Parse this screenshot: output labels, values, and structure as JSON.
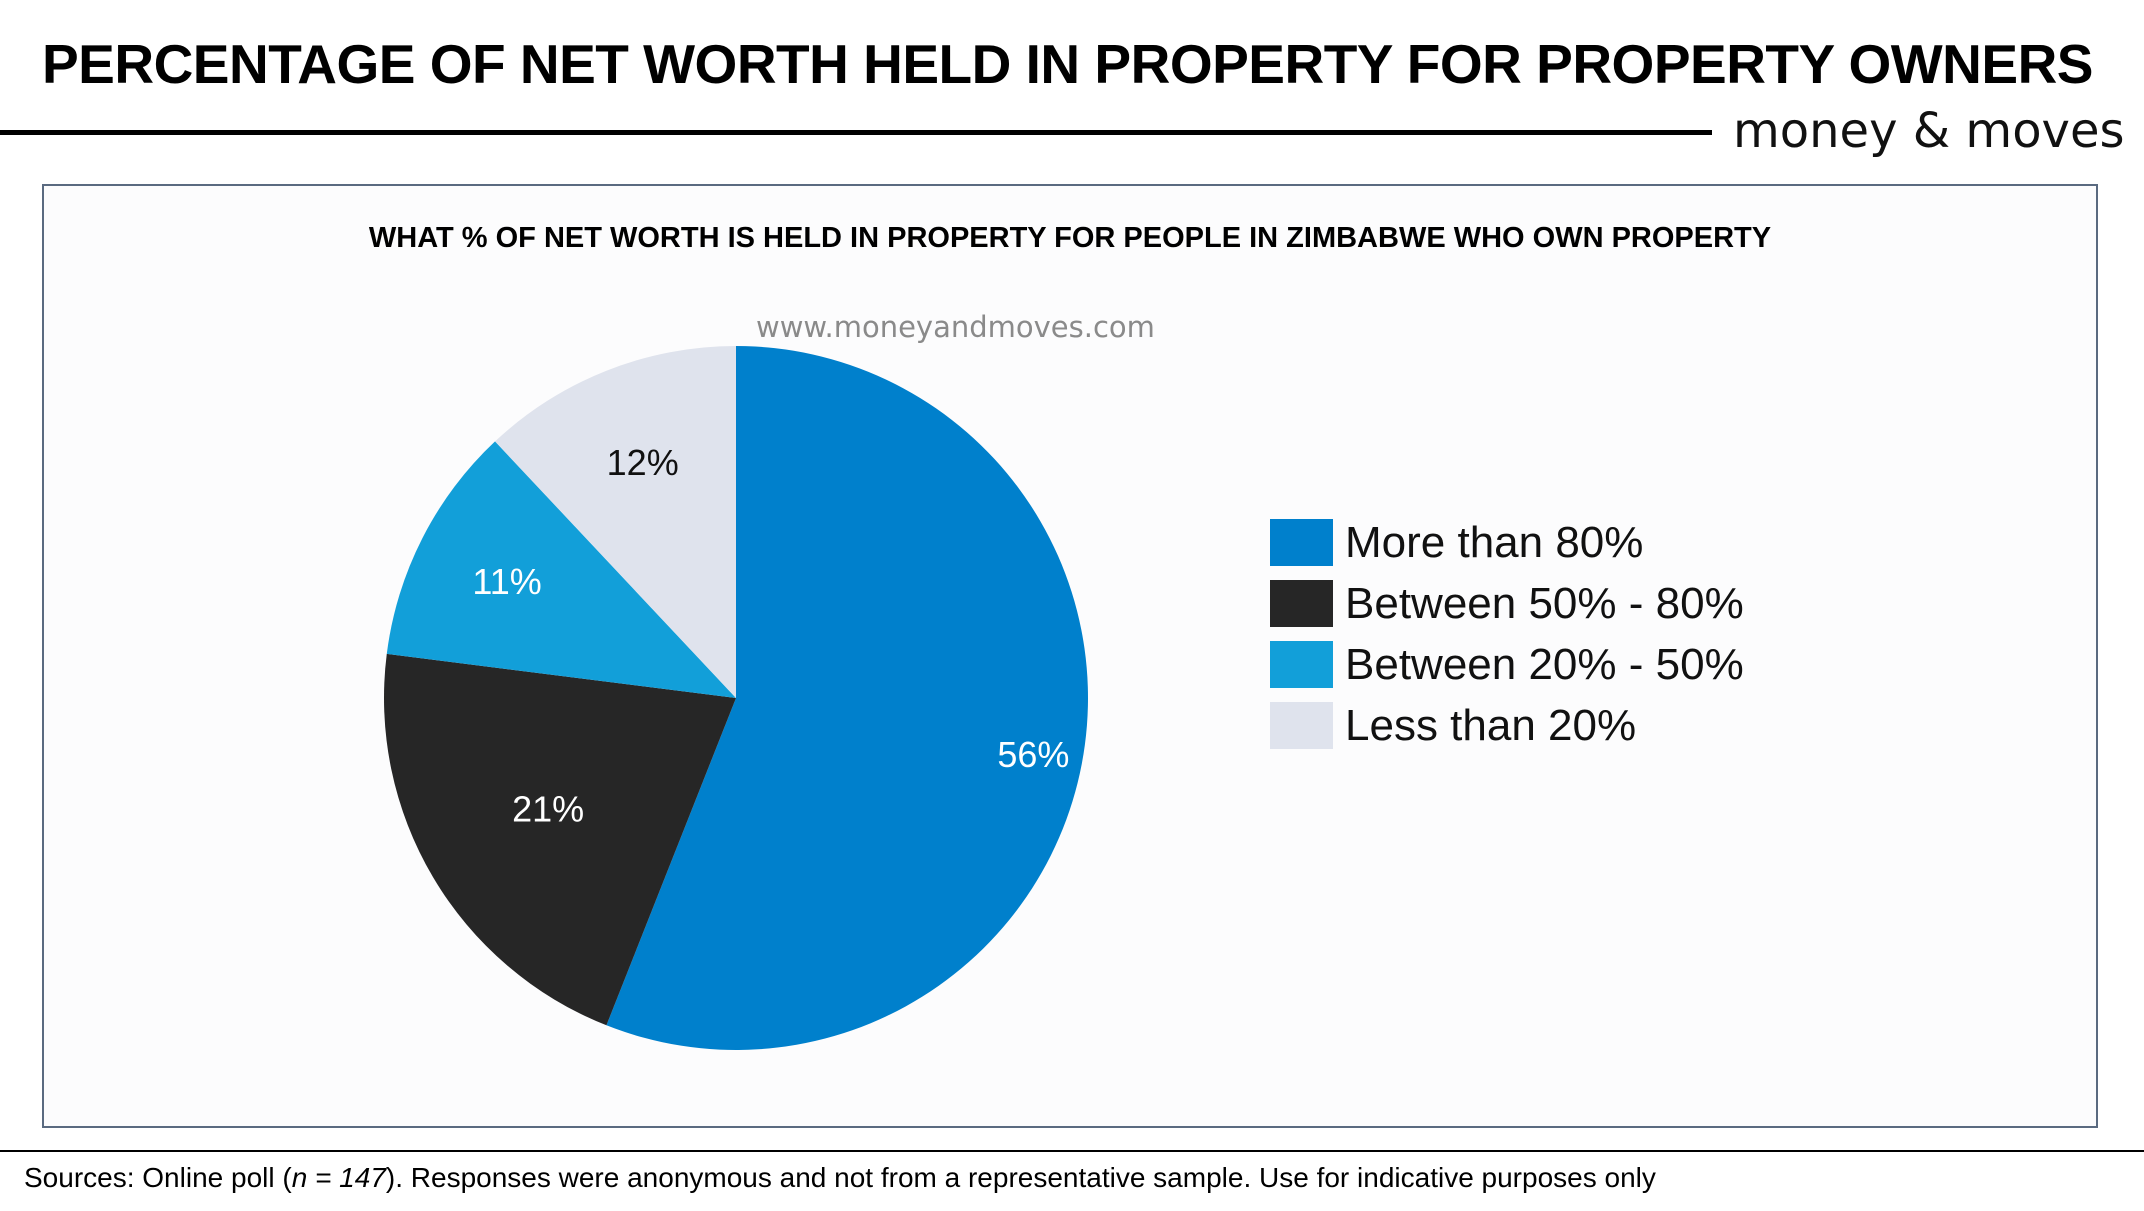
{
  "page": {
    "title": "PERCENTAGE OF NET WORTH HELD IN PROPERTY FOR PROPERTY OWNERS",
    "brand": "money & moves",
    "watermark": "www.moneyandmoves.com",
    "sources_prefix": "Sources: Online poll (",
    "sources_n": "n = 147",
    "sources_suffix": "). Responses were anonymous and not from a representative sample. Use for indicative purposes only"
  },
  "chart_data": {
    "type": "pie",
    "title": "WHAT % OF NET WORTH IS HELD IN PROPERTY FOR PEOPLE IN ZIMBABWE WHO OWN PROPERTY",
    "categories": [
      "More than 80%",
      "Between 50% - 80%",
      "Between 20% - 50%",
      "Less than 20%"
    ],
    "values": [
      56,
      21,
      11,
      12
    ],
    "data_labels": [
      "56%",
      "21%",
      "11%",
      "12%"
    ],
    "colors": [
      "#0080cc",
      "#262626",
      "#129fd9",
      "#dfe3ed"
    ],
    "label_colors": [
      "#ffffff",
      "#ffffff",
      "#ffffff",
      "#111111"
    ],
    "legend_position": "right",
    "start_angle": "12 o'clock, clockwise"
  }
}
